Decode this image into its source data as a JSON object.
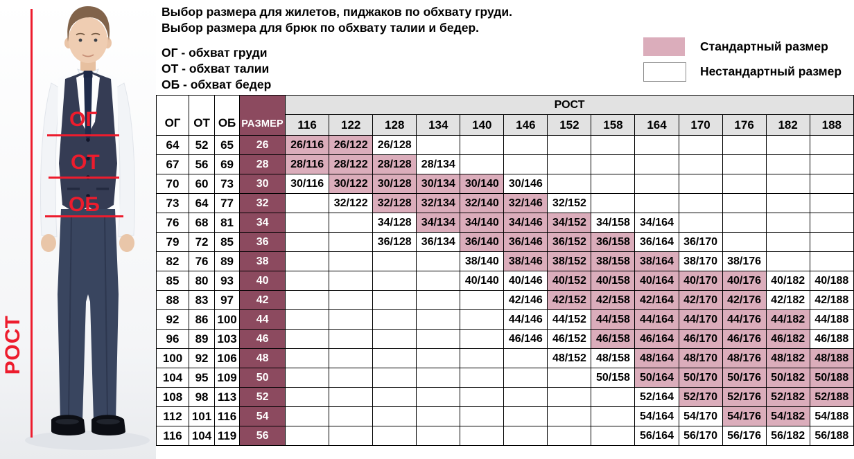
{
  "intro": {
    "title_line1": "Выбор размера для жилетов, пиджаков по обхвату груди.",
    "title_line2": "Выбор размера для брюк по обхвату талии и бедер.",
    "abbreviations": [
      "ОГ - обхват груди",
      "ОТ - обхват талии",
      "ОБ - обхват бедер"
    ]
  },
  "legend": {
    "standard_label": "Стандартный размер",
    "nonstandard_label": "Нестандартный размер"
  },
  "figure": {
    "chest_label": "ОГ",
    "waist_label": "ОТ",
    "hips_label": "ОБ",
    "height_label": "РОСТ"
  },
  "colors": {
    "standard_pink": "#dbadbb",
    "size_maroon": "#8c4a5f",
    "header_gray": "#e2e2e2",
    "annotation_red": "#ed1c2d"
  },
  "table": {
    "col_headers": {
      "og": "ОГ",
      "ot": "ОТ",
      "ob": "ОБ",
      "size": "РАЗМЕР",
      "rost": "РОСТ"
    },
    "heights": [
      116,
      122,
      128,
      134,
      140,
      146,
      152,
      158,
      164,
      170,
      176,
      182,
      188
    ],
    "rows": [
      {
        "og": 64,
        "ot": 52,
        "ob": 65,
        "size": 26,
        "cells": [
          {
            "h": 116,
            "label": "26/116",
            "standard": true
          },
          {
            "h": 122,
            "label": "26/122",
            "standard": true
          },
          {
            "h": 128,
            "label": "26/128",
            "standard": false
          }
        ]
      },
      {
        "og": 67,
        "ot": 56,
        "ob": 69,
        "size": 28,
        "cells": [
          {
            "h": 116,
            "label": "28/116",
            "standard": true
          },
          {
            "h": 122,
            "label": "28/122",
            "standard": true
          },
          {
            "h": 128,
            "label": "28/128",
            "standard": true
          },
          {
            "h": 134,
            "label": "28/134",
            "standard": false
          }
        ]
      },
      {
        "og": 70,
        "ot": 60,
        "ob": 73,
        "size": 30,
        "cells": [
          {
            "h": 116,
            "label": "30/116",
            "standard": false
          },
          {
            "h": 122,
            "label": "30/122",
            "standard": true
          },
          {
            "h": 128,
            "label": "30/128",
            "standard": true
          },
          {
            "h": 134,
            "label": "30/134",
            "standard": true
          },
          {
            "h": 140,
            "label": "30/140",
            "standard": true
          },
          {
            "h": 146,
            "label": "30/146",
            "standard": false
          }
        ]
      },
      {
        "og": 73,
        "ot": 64,
        "ob": 77,
        "size": 32,
        "cells": [
          {
            "h": 122,
            "label": "32/122",
            "standard": false
          },
          {
            "h": 128,
            "label": "32/128",
            "standard": true
          },
          {
            "h": 134,
            "label": "32/134",
            "standard": true
          },
          {
            "h": 140,
            "label": "32/140",
            "standard": true
          },
          {
            "h": 146,
            "label": "32/146",
            "standard": true
          },
          {
            "h": 152,
            "label": "32/152",
            "standard": false
          }
        ]
      },
      {
        "og": 76,
        "ot": 68,
        "ob": 81,
        "size": 34,
        "cells": [
          {
            "h": 128,
            "label": "34/128",
            "standard": false
          },
          {
            "h": 134,
            "label": "34/134",
            "standard": true
          },
          {
            "h": 140,
            "label": "34/140",
            "standard": true
          },
          {
            "h": 146,
            "label": "34/146",
            "standard": true
          },
          {
            "h": 152,
            "label": "34/152",
            "standard": true
          },
          {
            "h": 158,
            "label": "34/158",
            "standard": false
          },
          {
            "h": 164,
            "label": "34/164",
            "standard": false
          }
        ]
      },
      {
        "og": 79,
        "ot": 72,
        "ob": 85,
        "size": 36,
        "cells": [
          {
            "h": 128,
            "label": "36/128",
            "standard": false
          },
          {
            "h": 134,
            "label": "36/134",
            "standard": false
          },
          {
            "h": 140,
            "label": "36/140",
            "standard": true
          },
          {
            "h": 146,
            "label": "36/146",
            "standard": true
          },
          {
            "h": 152,
            "label": "36/152",
            "standard": true
          },
          {
            "h": 158,
            "label": "36/158",
            "standard": true
          },
          {
            "h": 164,
            "label": "36/164",
            "standard": false
          },
          {
            "h": 170,
            "label": "36/170",
            "standard": false
          }
        ]
      },
      {
        "og": 82,
        "ot": 76,
        "ob": 89,
        "size": 38,
        "cells": [
          {
            "h": 140,
            "label": "38/140",
            "standard": false
          },
          {
            "h": 146,
            "label": "38/146",
            "standard": true
          },
          {
            "h": 152,
            "label": "38/152",
            "standard": true
          },
          {
            "h": 158,
            "label": "38/158",
            "standard": true
          },
          {
            "h": 164,
            "label": "38/164",
            "standard": true
          },
          {
            "h": 170,
            "label": "38/170",
            "standard": false
          },
          {
            "h": 176,
            "label": "38/176",
            "standard": false
          }
        ]
      },
      {
        "og": 85,
        "ot": 80,
        "ob": 93,
        "size": 40,
        "cells": [
          {
            "h": 140,
            "label": "40/140",
            "standard": false
          },
          {
            "h": 146,
            "label": "40/146",
            "standard": false
          },
          {
            "h": 152,
            "label": "40/152",
            "standard": true
          },
          {
            "h": 158,
            "label": "40/158",
            "standard": true
          },
          {
            "h": 164,
            "label": "40/164",
            "standard": true
          },
          {
            "h": 170,
            "label": "40/170",
            "standard": true
          },
          {
            "h": 176,
            "label": "40/176",
            "standard": true
          },
          {
            "h": 182,
            "label": "40/182",
            "standard": false
          },
          {
            "h": 188,
            "label": "40/188",
            "standard": false
          }
        ]
      },
      {
        "og": 88,
        "ot": 83,
        "ob": 97,
        "size": 42,
        "cells": [
          {
            "h": 146,
            "label": "42/146",
            "standard": false
          },
          {
            "h": 152,
            "label": "42/152",
            "standard": true
          },
          {
            "h": 158,
            "label": "42/158",
            "standard": true
          },
          {
            "h": 164,
            "label": "42/164",
            "standard": true
          },
          {
            "h": 170,
            "label": "42/170",
            "standard": true
          },
          {
            "h": 176,
            "label": "42/176",
            "standard": true
          },
          {
            "h": 182,
            "label": "42/182",
            "standard": false
          },
          {
            "h": 188,
            "label": "42/188",
            "standard": false
          }
        ]
      },
      {
        "og": 92,
        "ot": 86,
        "ob": 100,
        "size": 44,
        "cells": [
          {
            "h": 146,
            "label": "44/146",
            "standard": false
          },
          {
            "h": 152,
            "label": "44/152",
            "standard": false
          },
          {
            "h": 158,
            "label": "44/158",
            "standard": true
          },
          {
            "h": 164,
            "label": "44/164",
            "standard": true
          },
          {
            "h": 170,
            "label": "44/170",
            "standard": true
          },
          {
            "h": 176,
            "label": "44/176",
            "standard": true
          },
          {
            "h": 182,
            "label": "44/182",
            "standard": true
          },
          {
            "h": 188,
            "label": "44/188",
            "standard": false
          }
        ]
      },
      {
        "og": 96,
        "ot": 89,
        "ob": 103,
        "size": 46,
        "cells": [
          {
            "h": 146,
            "label": "46/146",
            "standard": false
          },
          {
            "h": 152,
            "label": "46/152",
            "standard": false
          },
          {
            "h": 158,
            "label": "46/158",
            "standard": true
          },
          {
            "h": 164,
            "label": "46/164",
            "standard": true
          },
          {
            "h": 170,
            "label": "46/170",
            "standard": true
          },
          {
            "h": 176,
            "label": "46/176",
            "standard": true
          },
          {
            "h": 182,
            "label": "46/182",
            "standard": true
          },
          {
            "h": 188,
            "label": "46/188",
            "standard": false
          }
        ]
      },
      {
        "og": 100,
        "ot": 92,
        "ob": 106,
        "size": 48,
        "cells": [
          {
            "h": 152,
            "label": "48/152",
            "standard": false
          },
          {
            "h": 158,
            "label": "48/158",
            "standard": false
          },
          {
            "h": 164,
            "label": "48/164",
            "standard": true
          },
          {
            "h": 170,
            "label": "48/170",
            "standard": true
          },
          {
            "h": 176,
            "label": "48/176",
            "standard": true
          },
          {
            "h": 182,
            "label": "48/182",
            "standard": true
          },
          {
            "h": 188,
            "label": "48/188",
            "standard": true
          }
        ]
      },
      {
        "og": 104,
        "ot": 95,
        "ob": 109,
        "size": 50,
        "cells": [
          {
            "h": 158,
            "label": "50/158",
            "standard": false
          },
          {
            "h": 164,
            "label": "50/164",
            "standard": true
          },
          {
            "h": 170,
            "label": "50/170",
            "standard": true
          },
          {
            "h": 176,
            "label": "50/176",
            "standard": true
          },
          {
            "h": 182,
            "label": "50/182",
            "standard": true
          },
          {
            "h": 188,
            "label": "50/188",
            "standard": true
          }
        ]
      },
      {
        "og": 108,
        "ot": 98,
        "ob": 113,
        "size": 52,
        "cells": [
          {
            "h": 164,
            "label": "52/164",
            "standard": false
          },
          {
            "h": 170,
            "label": "52/170",
            "standard": true
          },
          {
            "h": 176,
            "label": "52/176",
            "standard": true
          },
          {
            "h": 182,
            "label": "52/182",
            "standard": true
          },
          {
            "h": 188,
            "label": "52/188",
            "standard": true
          }
        ]
      },
      {
        "og": 112,
        "ot": 101,
        "ob": 116,
        "size": 54,
        "cells": [
          {
            "h": 164,
            "label": "54/164",
            "standard": false
          },
          {
            "h": 170,
            "label": "54/170",
            "standard": false
          },
          {
            "h": 176,
            "label": "54/176",
            "standard": true
          },
          {
            "h": 182,
            "label": "54/182",
            "standard": true
          },
          {
            "h": 188,
            "label": "54/188",
            "standard": false
          }
        ]
      },
      {
        "og": 116,
        "ot": 104,
        "ob": 119,
        "size": 56,
        "cells": [
          {
            "h": 164,
            "label": "56/164",
            "standard": false
          },
          {
            "h": 170,
            "label": "56/170",
            "standard": false
          },
          {
            "h": 176,
            "label": "56/176",
            "standard": false
          },
          {
            "h": 182,
            "label": "56/182",
            "standard": false
          },
          {
            "h": 188,
            "label": "56/188",
            "standard": false
          }
        ]
      }
    ]
  }
}
